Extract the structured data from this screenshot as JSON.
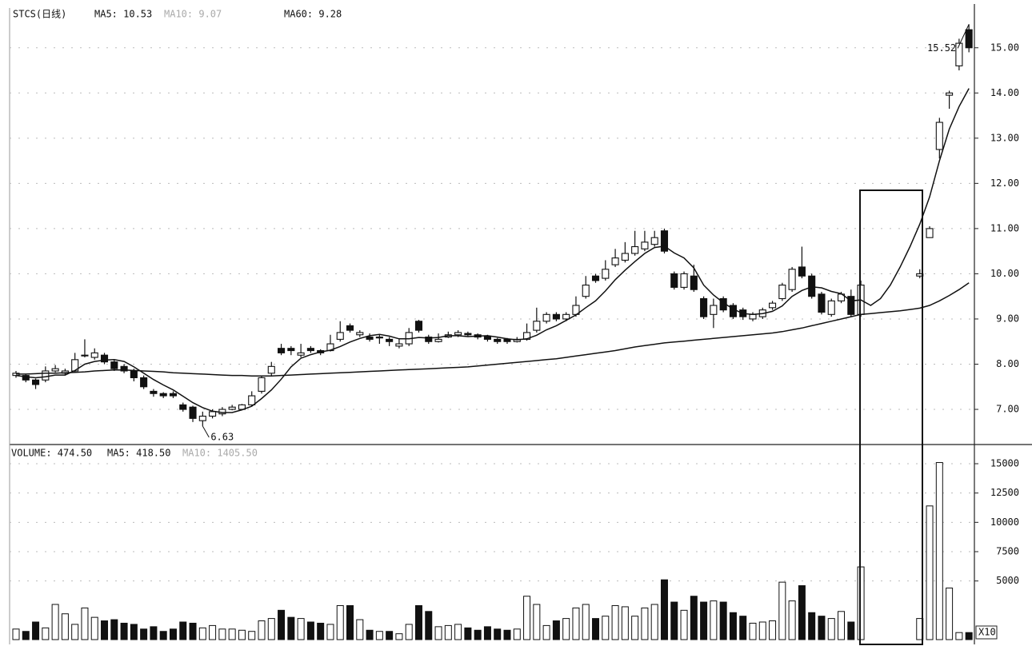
{
  "chart_data": {
    "type": "candlestick",
    "title": "STCS(日线)",
    "indicators": [
      "MA5: 10.53",
      "MA10: 9.07",
      "MA60: 9.28"
    ],
    "volume_indicators": [
      "VOLUME: 474.50",
      "MA5: 418.50",
      "MA10: 1405.50"
    ],
    "volume_unit": "X10",
    "ylim": [
      6.24,
      15.88
    ],
    "yticks": [
      {
        "value": 7,
        "label": "7.00"
      },
      {
        "value": 8,
        "label": "8.00"
      },
      {
        "value": 9,
        "label": "9.00"
      },
      {
        "value": 10,
        "label": "10.00"
      },
      {
        "value": 11,
        "label": "11.00"
      },
      {
        "value": 12,
        "label": "12.00"
      },
      {
        "value": 13,
        "label": "13.00"
      },
      {
        "value": 14,
        "label": "14.00"
      },
      {
        "value": 15,
        "label": "15.00"
      }
    ],
    "volume_ylim": [
      0,
      16500
    ],
    "volume_yticks": [
      5000,
      7500,
      10000,
      12500,
      15000
    ],
    "grid": true,
    "annotations": [
      {
        "value": 15.52,
        "at": 97
      },
      {
        "value": 6.63,
        "at": 19
      }
    ],
    "ohlc": [
      [
        7.75,
        7.85,
        7.7,
        7.8
      ],
      [
        7.75,
        7.78,
        7.6,
        7.65
      ],
      [
        7.65,
        7.68,
        7.45,
        7.55
      ],
      [
        7.65,
        7.95,
        7.6,
        7.85
      ],
      [
        7.85,
        7.98,
        7.82,
        7.9
      ],
      [
        7.8,
        7.9,
        7.75,
        7.85
      ],
      [
        7.85,
        8.25,
        7.82,
        8.1
      ],
      [
        8.2,
        8.55,
        8.15,
        8.2
      ],
      [
        8.15,
        8.35,
        8.1,
        8.25
      ],
      [
        8.2,
        8.25,
        8.0,
        8.05
      ],
      [
        8.05,
        8.1,
        7.85,
        7.9
      ],
      [
        7.95,
        8.0,
        7.8,
        7.85
      ],
      [
        7.85,
        7.9,
        7.62,
        7.7
      ],
      [
        7.7,
        7.75,
        7.45,
        7.5
      ],
      [
        7.4,
        7.45,
        7.28,
        7.35
      ],
      [
        7.35,
        7.38,
        7.25,
        7.3
      ],
      [
        7.35,
        7.4,
        7.25,
        7.3
      ],
      [
        7.1,
        7.15,
        6.95,
        7.0
      ],
      [
        7.05,
        7.08,
        6.72,
        6.8
      ],
      [
        6.75,
        6.95,
        6.63,
        6.85
      ],
      [
        6.85,
        7.0,
        6.8,
        6.95
      ],
      [
        6.9,
        7.05,
        6.85,
        7.0
      ],
      [
        7.0,
        7.1,
        6.98,
        7.05
      ],
      [
        7.0,
        7.12,
        6.98,
        7.1
      ],
      [
        7.1,
        7.4,
        7.08,
        7.3
      ],
      [
        7.4,
        7.75,
        7.35,
        7.7
      ],
      [
        7.8,
        8.05,
        7.75,
        7.95
      ],
      [
        8.35,
        8.45,
        8.2,
        8.25
      ],
      [
        8.35,
        8.4,
        8.2,
        8.3
      ],
      [
        8.2,
        8.45,
        8.15,
        8.25
      ],
      [
        8.35,
        8.4,
        8.25,
        8.3
      ],
      [
        8.3,
        8.33,
        8.2,
        8.25
      ],
      [
        8.3,
        8.65,
        8.28,
        8.45
      ],
      [
        8.55,
        8.95,
        8.5,
        8.7
      ],
      [
        8.85,
        8.9,
        8.7,
        8.75
      ],
      [
        8.65,
        8.75,
        8.6,
        8.7
      ],
      [
        8.6,
        8.68,
        8.5,
        8.55
      ],
      [
        8.58,
        8.65,
        8.45,
        8.6
      ],
      [
        8.55,
        8.6,
        8.4,
        8.5
      ],
      [
        8.4,
        8.55,
        8.35,
        8.45
      ],
      [
        8.45,
        8.8,
        8.4,
        8.7
      ],
      [
        8.95,
        8.98,
        8.7,
        8.75
      ],
      [
        8.6,
        8.65,
        8.45,
        8.5
      ],
      [
        8.5,
        8.68,
        8.48,
        8.55
      ],
      [
        8.6,
        8.72,
        8.58,
        8.65
      ],
      [
        8.65,
        8.75,
        8.6,
        8.7
      ],
      [
        8.68,
        8.72,
        8.6,
        8.65
      ],
      [
        8.65,
        8.68,
        8.55,
        8.6
      ],
      [
        8.62,
        8.65,
        8.5,
        8.55
      ],
      [
        8.55,
        8.58,
        8.45,
        8.5
      ],
      [
        8.55,
        8.58,
        8.45,
        8.5
      ],
      [
        8.5,
        8.6,
        8.48,
        8.55
      ],
      [
        8.55,
        8.9,
        8.52,
        8.7
      ],
      [
        8.75,
        9.25,
        8.7,
        8.95
      ],
      [
        8.95,
        9.15,
        8.9,
        9.1
      ],
      [
        9.1,
        9.15,
        8.95,
        9.0
      ],
      [
        9.0,
        9.15,
        8.95,
        9.1
      ],
      [
        9.1,
        9.5,
        9.05,
        9.3
      ],
      [
        9.5,
        9.95,
        9.45,
        9.75
      ],
      [
        9.95,
        10.0,
        9.8,
        9.85
      ],
      [
        9.9,
        10.3,
        9.85,
        10.1
      ],
      [
        10.2,
        10.55,
        10.15,
        10.35
      ],
      [
        10.3,
        10.7,
        10.25,
        10.45
      ],
      [
        10.45,
        10.95,
        10.4,
        10.6
      ],
      [
        10.55,
        10.95,
        10.5,
        10.7
      ],
      [
        10.65,
        10.95,
        10.6,
        10.8
      ],
      [
        10.95,
        11.0,
        10.45,
        10.5
      ],
      [
        10.0,
        10.05,
        9.65,
        9.7
      ],
      [
        9.7,
        10.05,
        9.65,
        10.0
      ],
      [
        9.95,
        10.2,
        9.6,
        9.65
      ],
      [
        9.45,
        9.5,
        9.0,
        9.05
      ],
      [
        9.1,
        9.45,
        8.8,
        9.3
      ],
      [
        9.45,
        9.5,
        9.15,
        9.2
      ],
      [
        9.3,
        9.35,
        9.0,
        9.05
      ],
      [
        9.2,
        9.25,
        8.98,
        9.05
      ],
      [
        9.0,
        9.15,
        8.95,
        9.1
      ],
      [
        9.05,
        9.25,
        9.0,
        9.2
      ],
      [
        9.25,
        9.4,
        9.2,
        9.35
      ],
      [
        9.45,
        9.8,
        9.4,
        9.75
      ],
      [
        9.65,
        10.15,
        9.6,
        10.1
      ],
      [
        10.15,
        10.6,
        9.9,
        9.95
      ],
      [
        9.95,
        10.0,
        9.45,
        9.5
      ],
      [
        9.55,
        9.6,
        9.1,
        9.15
      ],
      [
        9.1,
        9.45,
        9.05,
        9.4
      ],
      [
        9.4,
        9.6,
        9.35,
        9.55
      ],
      [
        9.5,
        9.65,
        9.05,
        9.1
      ],
      [
        9.1,
        9.85,
        9.05,
        9.75
      ],
      null,
      null,
      null,
      null,
      null,
      [
        9.95,
        10.1,
        9.9,
        10.0
      ],
      [
        10.8,
        11.05,
        10.8,
        11.0
      ],
      [
        12.75,
        13.45,
        12.55,
        13.35
      ],
      [
        13.95,
        14.05,
        13.65,
        14.0
      ],
      [
        14.6,
        15.2,
        14.5,
        15.1
      ],
      [
        15.4,
        15.52,
        14.9,
        15.0
      ]
    ],
    "volume": [
      900,
      700,
      1500,
      1000,
      3000,
      2200,
      1300,
      2700,
      1900,
      1600,
      1700,
      1400,
      1300,
      900,
      1100,
      700,
      900,
      1500,
      1400,
      1000,
      1200,
      900,
      900,
      800,
      700,
      1600,
      1800,
      2500,
      1900,
      1800,
      1500,
      1400,
      1300,
      2900,
      2900,
      1700,
      800,
      700,
      700,
      500,
      1300,
      2900,
      2400,
      1100,
      1200,
      1300,
      1000,
      800,
      1100,
      900,
      800,
      900,
      3700,
      3000,
      1200,
      1600,
      1800,
      2700,
      3000,
      1800,
      2000,
      2900,
      2800,
      2000,
      2700,
      3000,
      5100,
      3200,
      2500,
      3700,
      3200,
      3300,
      3200,
      2300,
      2000,
      1400,
      1500,
      1600,
      4900,
      3300,
      4600,
      2300,
      2000,
      1800,
      2400,
      1500,
      6200,
      null,
      null,
      null,
      null,
      null,
      1800,
      11400,
      15100,
      4400,
      600,
      600
    ],
    "lines": [
      {
        "color": "#111111",
        "values": [
          7.75,
          7.72,
          7.7,
          7.72,
          7.76,
          7.76,
          7.86,
          8.0,
          8.06,
          8.09,
          8.1,
          8.06,
          7.94,
          7.8,
          7.66,
          7.54,
          7.43,
          7.29,
          7.15,
          7.04,
          6.96,
          6.93,
          6.93,
          6.99,
          7.07,
          7.24,
          7.43,
          7.67,
          7.94,
          8.13,
          8.21,
          8.27,
          8.31,
          8.39,
          8.49,
          8.57,
          8.63,
          8.66,
          8.62,
          8.56,
          8.56,
          8.59,
          8.58,
          8.59,
          8.63,
          8.63,
          8.61,
          8.62,
          8.63,
          8.6,
          8.56,
          8.54,
          8.56,
          8.64,
          8.76,
          8.85,
          8.97,
          9.09,
          9.25,
          9.4,
          9.62,
          9.87,
          10.08,
          10.27,
          10.45,
          10.58,
          10.61,
          10.46,
          10.35,
          10.13,
          9.75,
          9.53,
          9.36,
          9.22,
          9.12,
          9.1,
          9.12,
          9.17,
          9.29,
          9.5,
          9.63,
          9.71,
          9.69,
          9.61,
          9.56,
          9.4,
          9.42,
          9.3,
          9.45,
          9.75,
          10.15,
          10.6,
          11.1,
          11.7,
          12.5,
          13.2,
          13.7,
          14.1
        ]
      },
      {
        "color": "#111111",
        "values": [
          7.78,
          7.78,
          7.79,
          7.8,
          7.8,
          7.81,
          7.82,
          7.83,
          7.85,
          7.86,
          7.87,
          7.87,
          7.86,
          7.85,
          7.84,
          7.83,
          7.81,
          7.8,
          7.79,
          7.78,
          7.77,
          7.76,
          7.75,
          7.75,
          7.74,
          7.74,
          7.74,
          7.75,
          7.76,
          7.77,
          7.78,
          7.79,
          7.8,
          7.81,
          7.82,
          7.83,
          7.84,
          7.85,
          7.86,
          7.87,
          7.88,
          7.89,
          7.9,
          7.91,
          7.92,
          7.93,
          7.94,
          7.96,
          7.98,
          8.0,
          8.02,
          8.04,
          8.06,
          8.08,
          8.1,
          8.12,
          8.15,
          8.18,
          8.21,
          8.24,
          8.27,
          8.3,
          8.34,
          8.38,
          8.41,
          8.44,
          8.47,
          8.49,
          8.51,
          8.53,
          8.55,
          8.57,
          8.59,
          8.61,
          8.63,
          8.65,
          8.67,
          8.69,
          8.72,
          8.76,
          8.8,
          8.85,
          8.9,
          8.95,
          9.0,
          9.05,
          9.1,
          9.12,
          9.14,
          9.16,
          9.18,
          9.21,
          9.24,
          9.3,
          9.4,
          9.52,
          9.65,
          9.8
        ]
      }
    ]
  }
}
